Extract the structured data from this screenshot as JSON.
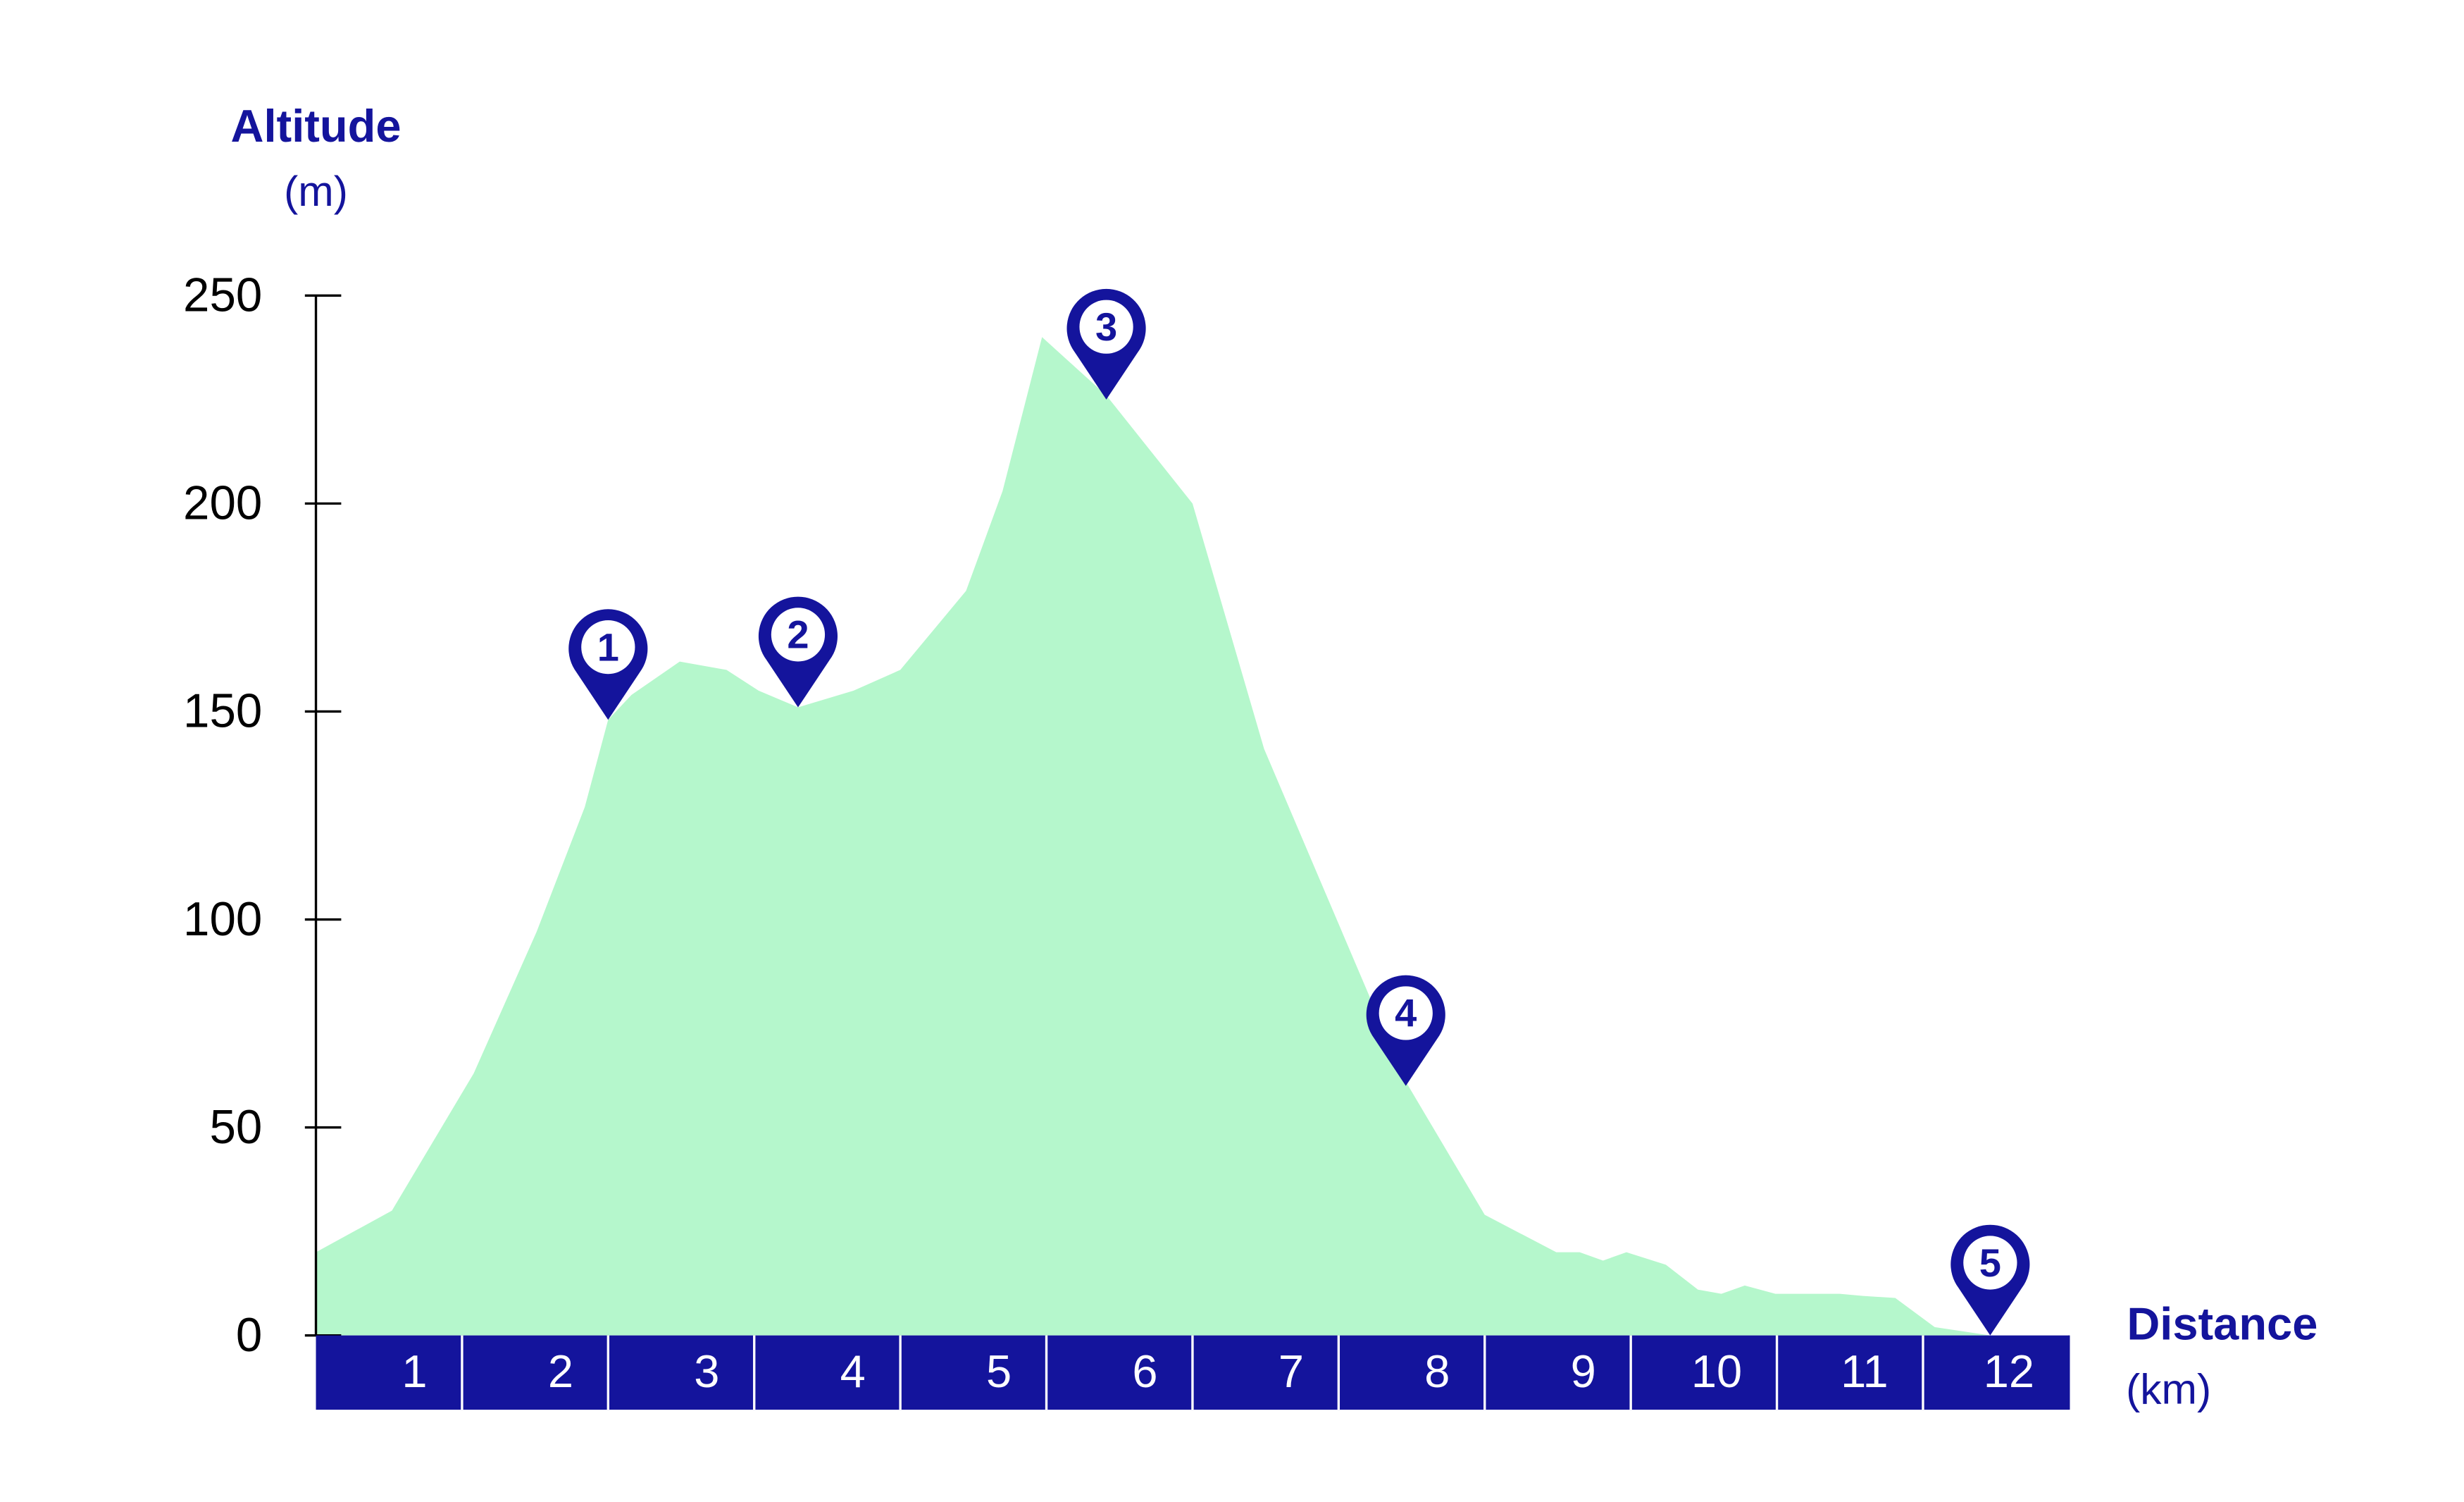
{
  "chart_data": {
    "type": "area",
    "y_label": "Altitude",
    "y_unit": "(m)",
    "x_label": "Distance",
    "x_unit": "(km)",
    "x": [
      0,
      0.52,
      1.08,
      1.51,
      1.84,
      2.0,
      2.16,
      2.49,
      2.81,
      3.03,
      3.3,
      3.68,
      4.0,
      4.45,
      4.7,
      4.97,
      5.41,
      6.0,
      6.49,
      7.46,
      8.0,
      8.49,
      8.65,
      8.81,
      8.97,
      9.24,
      9.46,
      9.62,
      9.78,
      9.99,
      10.43,
      10.59,
      10.81,
      11.08,
      11.46,
      12
    ],
    "values": [
      20,
      30,
      63,
      97,
      127,
      148,
      154,
      162,
      160,
      155,
      151,
      155,
      160,
      179,
      203,
      240,
      226,
      200,
      141,
      61,
      29,
      20,
      20,
      18,
      20,
      17,
      11,
      10,
      12,
      10,
      10,
      9.5,
      9,
      2,
      0,
      0
    ],
    "color": "#b5f7cc",
    "accent_color": "#14149c",
    "xlim": [
      0,
      12
    ],
    "xticks": [
      1,
      2,
      3,
      4,
      5,
      6,
      7,
      8,
      9,
      10,
      11,
      12
    ],
    "ylim": [
      0,
      250
    ],
    "yticks": [
      0,
      50,
      100,
      150,
      200,
      250
    ],
    "markers": [
      {
        "label": "1",
        "x": 2.0,
        "y": 148
      },
      {
        "label": "2",
        "x": 3.3,
        "y": 151
      },
      {
        "label": "3",
        "x": 5.41,
        "y": 225
      },
      {
        "label": "4",
        "x": 7.46,
        "y": 60
      },
      {
        "label": "5",
        "x": 11.46,
        "y": 0
      }
    ]
  }
}
